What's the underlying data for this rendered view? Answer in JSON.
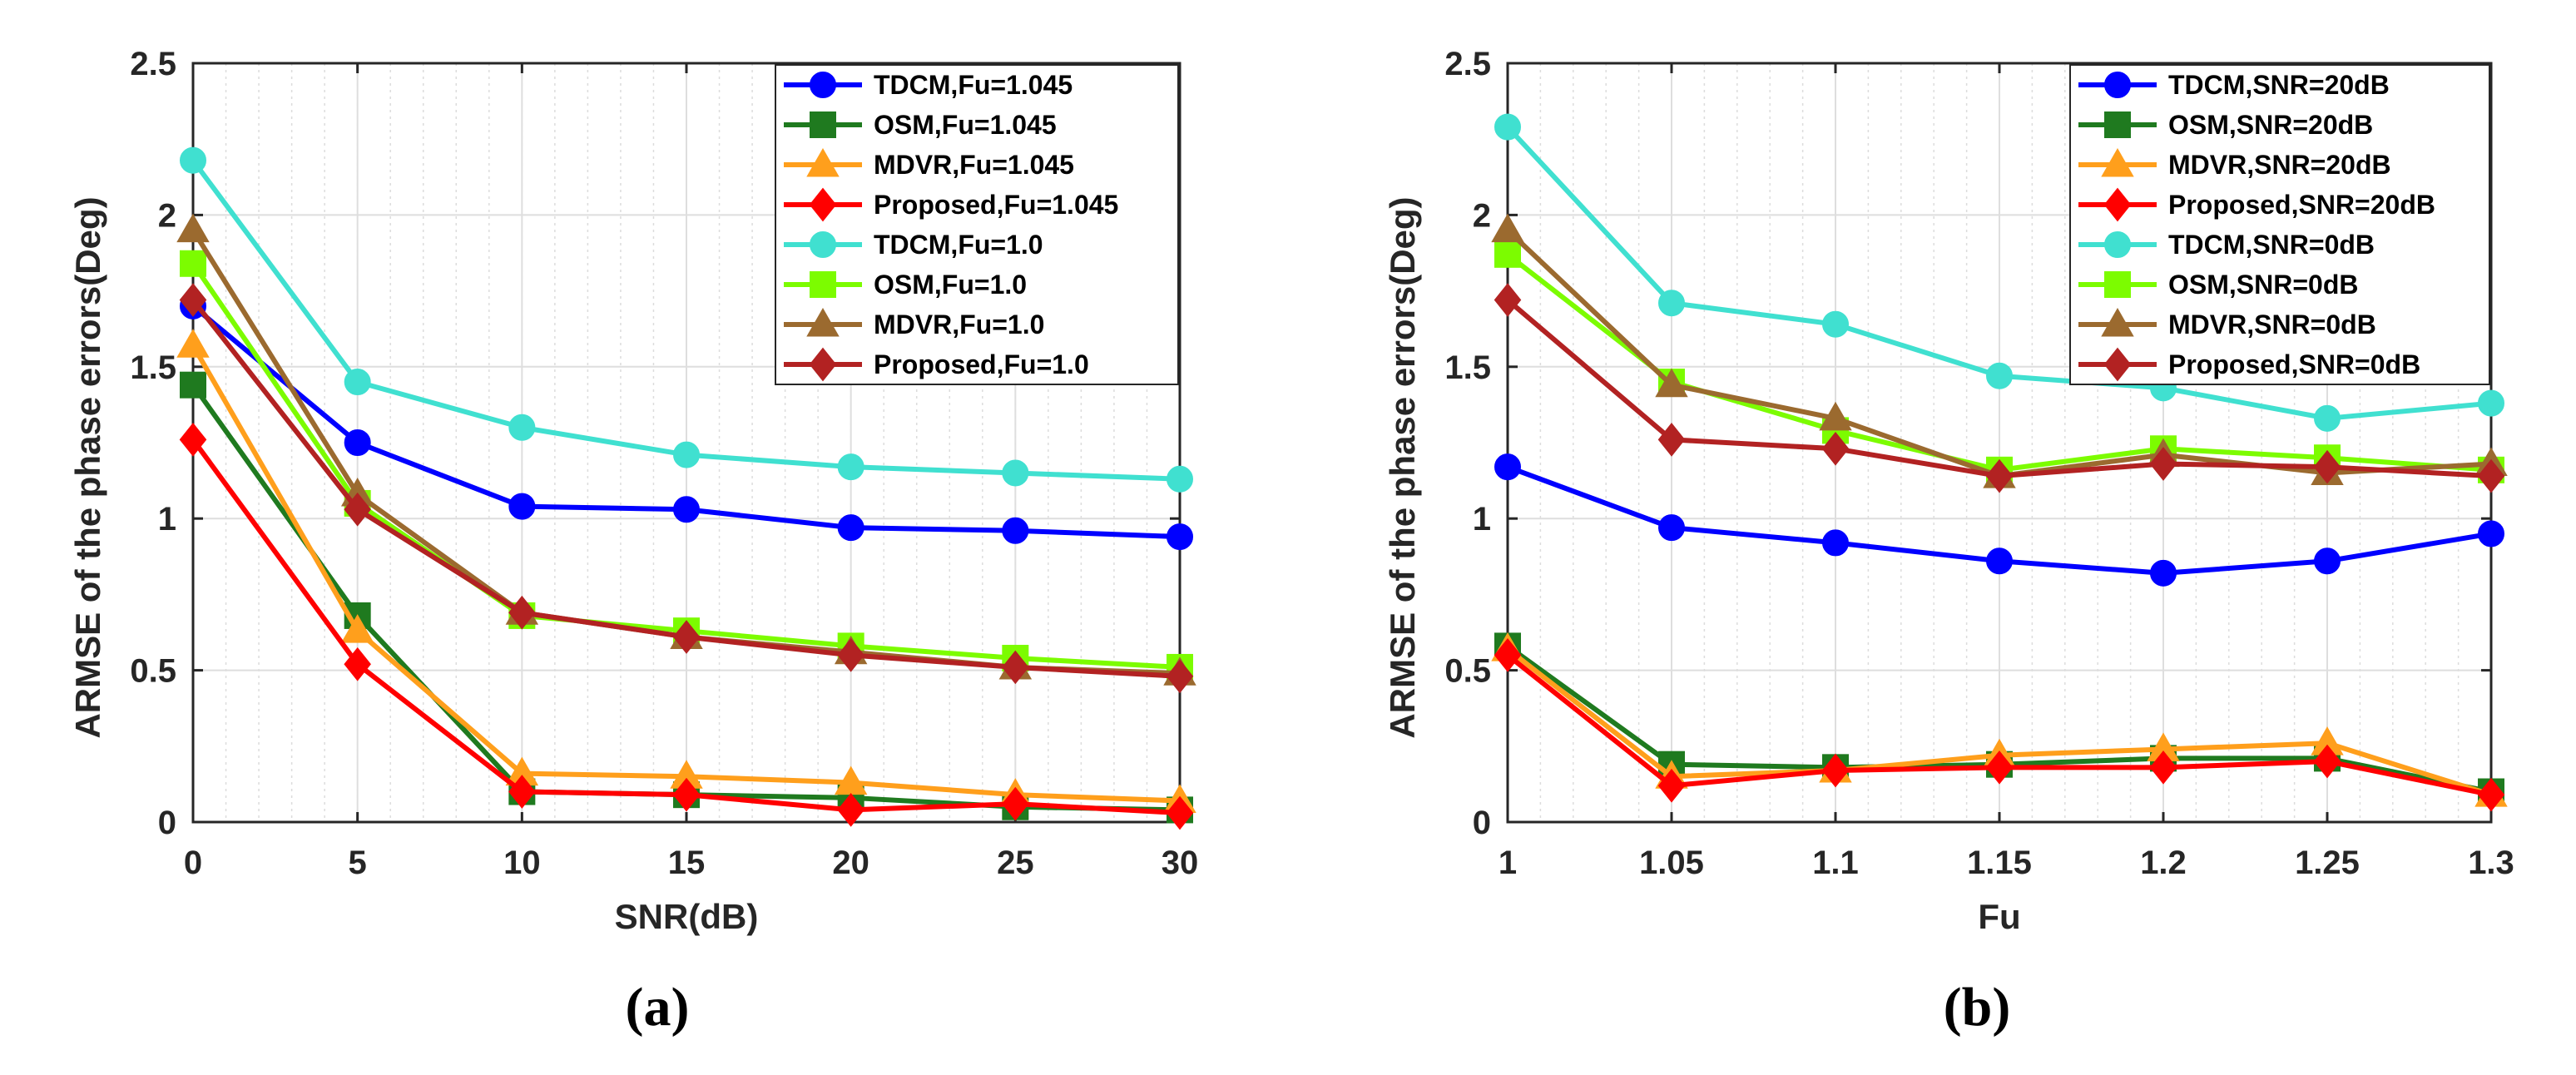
{
  "chart_data": [
    {
      "type": "line",
      "caption": "(a)",
      "xlabel": "SNR(dB)",
      "ylabel": "ARMSE of the phase errors(Deg)",
      "x": [
        0,
        5,
        10,
        15,
        20,
        25,
        30
      ],
      "xticks": [
        "0",
        "5",
        "10",
        "15",
        "20",
        "25",
        "30"
      ],
      "xlim": [
        0,
        30
      ],
      "ylim": [
        0,
        2.5
      ],
      "yticks": [
        "0",
        "0.5",
        "1",
        "1.5",
        "2",
        "2.5"
      ],
      "xminor": 1,
      "grid": true,
      "legend_position": "top-right",
      "series": [
        {
          "name": "TDCM,Fu=1.045",
          "color": "#0000ff",
          "marker": "circle",
          "values": [
            1.7,
            1.25,
            1.04,
            1.03,
            0.97,
            0.96,
            0.94
          ]
        },
        {
          "name": "OSM,Fu=1.045",
          "color": "#1f7a1f",
          "marker": "square",
          "values": [
            1.44,
            0.68,
            0.1,
            0.09,
            0.08,
            0.05,
            0.04
          ]
        },
        {
          "name": "MDVR,Fu=1.045",
          "color": "#ff9f1c",
          "marker": "triangle",
          "values": [
            1.57,
            0.63,
            0.16,
            0.15,
            0.13,
            0.09,
            0.07
          ]
        },
        {
          "name": "Proposed,Fu=1.045",
          "color": "#ff0000",
          "marker": "diamond",
          "values": [
            1.26,
            0.52,
            0.1,
            0.09,
            0.04,
            0.06,
            0.03
          ]
        },
        {
          "name": "TDCM,Fu=1.0",
          "color": "#40e0d0",
          "marker": "circle",
          "values": [
            2.18,
            1.45,
            1.3,
            1.21,
            1.17,
            1.15,
            1.13
          ]
        },
        {
          "name": "OSM,Fu=1.0",
          "color": "#7cfc00",
          "marker": "square",
          "values": [
            1.84,
            1.05,
            0.68,
            0.63,
            0.58,
            0.54,
            0.51
          ]
        },
        {
          "name": "MDVR,Fu=1.0",
          "color": "#9b6a2f",
          "marker": "triangle",
          "values": [
            1.95,
            1.08,
            0.69,
            0.61,
            0.56,
            0.51,
            0.49
          ]
        },
        {
          "name": "Proposed,Fu=1.0",
          "color": "#b22222",
          "marker": "diamond",
          "values": [
            1.72,
            1.03,
            0.69,
            0.61,
            0.55,
            0.51,
            0.48
          ]
        }
      ]
    },
    {
      "type": "line",
      "caption": "(b)",
      "xlabel": "Fu",
      "ylabel": "ARMSE of the phase errors(Deg)",
      "x": [
        1.0,
        1.05,
        1.1,
        1.15,
        1.2,
        1.25,
        1.3
      ],
      "xticks": [
        "1",
        "1.05",
        "1.1",
        "1.15",
        "1.2",
        "1.25",
        "1.3"
      ],
      "xlim": [
        1.0,
        1.3
      ],
      "ylim": [
        0,
        2.5
      ],
      "yticks": [
        "0",
        "0.5",
        "1",
        "1.5",
        "2",
        "2.5"
      ],
      "xminor": 0.01,
      "grid": true,
      "legend_position": "top-right",
      "series": [
        {
          "name": "TDCM,SNR=20dB",
          "color": "#0000ff",
          "marker": "circle",
          "values": [
            1.17,
            0.97,
            0.92,
            0.86,
            0.82,
            0.86,
            0.95
          ]
        },
        {
          "name": "OSM,SNR=20dB",
          "color": "#1f7a1f",
          "marker": "square",
          "values": [
            0.58,
            0.19,
            0.18,
            0.19,
            0.21,
            0.21,
            0.1
          ]
        },
        {
          "name": "MDVR,SNR=20dB",
          "color": "#ff9f1c",
          "marker": "triangle",
          "values": [
            0.57,
            0.15,
            0.17,
            0.22,
            0.24,
            0.26,
            0.09
          ]
        },
        {
          "name": "Proposed,SNR=20dB",
          "color": "#ff0000",
          "marker": "diamond",
          "values": [
            0.55,
            0.12,
            0.17,
            0.18,
            0.18,
            0.2,
            0.09
          ]
        },
        {
          "name": "TDCM,SNR=0dB",
          "color": "#40e0d0",
          "marker": "circle",
          "values": [
            2.29,
            1.71,
            1.64,
            1.47,
            1.43,
            1.33,
            1.38
          ]
        },
        {
          "name": "OSM,SNR=0dB",
          "color": "#7cfc00",
          "marker": "square",
          "values": [
            1.87,
            1.45,
            1.29,
            1.16,
            1.23,
            1.2,
            1.16
          ]
        },
        {
          "name": "MDVR,SNR=0dB",
          "color": "#9b6a2f",
          "marker": "triangle",
          "values": [
            1.95,
            1.44,
            1.33,
            1.14,
            1.21,
            1.15,
            1.18
          ]
        },
        {
          "name": "Proposed,SNR=0dB",
          "color": "#b22222",
          "marker": "diamond",
          "values": [
            1.72,
            1.26,
            1.23,
            1.14,
            1.18,
            1.17,
            1.14
          ]
        }
      ]
    }
  ]
}
